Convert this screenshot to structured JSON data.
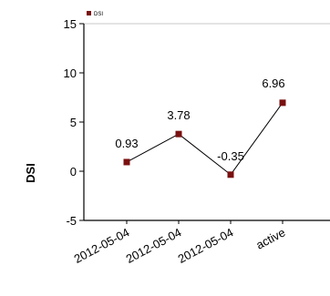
{
  "chart_data": {
    "type": "line",
    "ylabel": "DSI",
    "ylim": [
      -5,
      15
    ],
    "yticks": [
      -5,
      0,
      5,
      10,
      15
    ],
    "grid": false,
    "legend_position": "top-left",
    "categories": [
      "2012-05-04",
      "2012-05-04",
      "2012-05-04",
      "active"
    ],
    "series": [
      {
        "name": "DSI",
        "values": [
          0.93,
          3.78,
          -0.35,
          6.96
        ],
        "data_labels": [
          "0.93",
          "3.78",
          "-0.35",
          "6.96"
        ]
      }
    ]
  },
  "colors": {
    "marker": "#7a1010",
    "line": "#000000",
    "axis": "#000000",
    "frame": "#c8c8c8",
    "text": "#000000"
  }
}
